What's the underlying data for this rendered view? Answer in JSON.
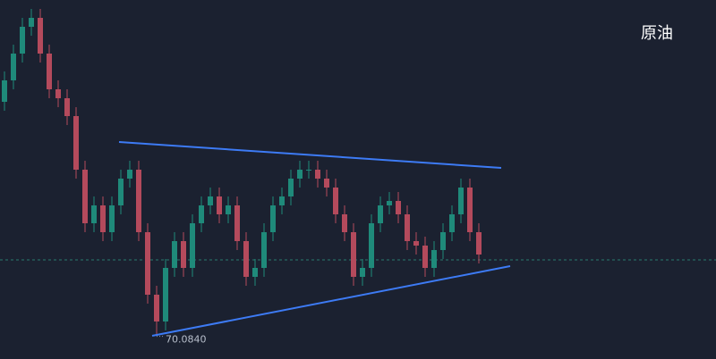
{
  "chart_data": {
    "type": "candlestick",
    "title": "原油",
    "x": [
      0,
      1,
      2,
      3,
      4,
      5,
      6,
      7,
      8,
      9,
      10,
      11,
      12,
      13,
      14,
      15,
      16,
      17,
      18,
      19,
      20,
      21,
      22,
      23,
      24,
      25,
      26,
      27,
      28,
      29,
      30,
      31,
      32,
      33,
      34,
      35,
      36,
      37,
      38,
      39,
      40,
      41,
      42,
      43,
      44,
      45,
      46,
      47,
      48,
      49,
      50,
      51,
      52,
      53
    ],
    "open": [
      72.7,
      72.94,
      73.24,
      73.54,
      73.64,
      73.24,
      72.84,
      72.74,
      72.54,
      71.94,
      71.34,
      71.54,
      71.24,
      71.54,
      71.84,
      71.94,
      71.24,
      70.54,
      70.24,
      70.84,
      71.14,
      70.84,
      71.34,
      71.54,
      71.64,
      71.44,
      71.54,
      71.14,
      70.74,
      70.84,
      71.24,
      71.54,
      71.64,
      71.84,
      71.94,
      71.94,
      71.84,
      71.74,
      71.44,
      71.24,
      70.74,
      70.84,
      71.34,
      71.54,
      71.59,
      71.44,
      71.14,
      71.09,
      70.84,
      71.04,
      71.24,
      71.44,
      71.74,
      71.24
    ],
    "high": [
      73.04,
      73.34,
      73.64,
      73.74,
      73.74,
      73.34,
      72.94,
      72.84,
      72.64,
      72.04,
      71.64,
      71.64,
      71.64,
      71.94,
      72.04,
      72.04,
      71.34,
      70.64,
      70.94,
      71.24,
      71.24,
      71.44,
      71.64,
      71.74,
      71.74,
      71.64,
      71.64,
      71.24,
      70.94,
      71.34,
      71.64,
      71.74,
      71.94,
      72.04,
      72.04,
      72.04,
      71.94,
      71.84,
      71.54,
      71.34,
      70.94,
      71.44,
      71.64,
      71.69,
      71.69,
      71.54,
      71.24,
      71.19,
      71.14,
      71.34,
      71.54,
      71.84,
      71.84,
      71.34
    ],
    "low": [
      72.6,
      72.84,
      73.14,
      73.44,
      73.14,
      72.74,
      72.64,
      72.44,
      71.84,
      71.24,
      71.24,
      71.14,
      71.14,
      71.44,
      71.74,
      71.14,
      70.44,
      70.084,
      70.14,
      70.74,
      70.74,
      70.74,
      71.24,
      71.44,
      71.34,
      71.34,
      71.04,
      70.64,
      70.64,
      70.74,
      71.14,
      71.44,
      71.54,
      71.74,
      71.84,
      71.74,
      71.64,
      71.34,
      71.14,
      70.64,
      70.64,
      70.74,
      71.24,
      71.44,
      71.34,
      71.04,
      70.99,
      70.74,
      70.74,
      70.94,
      71.14,
      71.34,
      71.14,
      70.89
    ],
    "close": [
      72.94,
      73.24,
      73.54,
      73.64,
      73.24,
      72.84,
      72.74,
      72.54,
      71.94,
      71.34,
      71.54,
      71.24,
      71.54,
      71.84,
      71.94,
      71.24,
      70.54,
      70.24,
      70.84,
      71.14,
      70.84,
      71.34,
      71.54,
      71.64,
      71.44,
      71.54,
      71.14,
      70.74,
      70.84,
      71.24,
      71.54,
      71.64,
      71.84,
      71.94,
      71.94,
      71.84,
      71.74,
      71.44,
      71.24,
      70.74,
      70.84,
      71.34,
      71.54,
      71.59,
      71.44,
      71.14,
      71.09,
      70.84,
      71.04,
      71.24,
      71.44,
      71.74,
      71.24,
      70.99
    ],
    "up_color": "#1f8a7a",
    "down_color": "#b44a5c",
    "ylim": [
      69.82,
      73.84
    ],
    "xlim": [
      -0.5,
      79.5
    ],
    "price_line": 70.93,
    "low_annotation": {
      "x": 17,
      "value": 70.084,
      "label": "70.0840"
    },
    "trendlines": [
      {
        "x": [
          12.8,
          55.5
        ],
        "y": [
          72.25,
          71.96
        ],
        "color": "#3d7bf5"
      },
      {
        "x": [
          16.5,
          56.5
        ],
        "y": [
          70.08,
          70.86
        ],
        "color": "#3d7bf5"
      }
    ]
  }
}
